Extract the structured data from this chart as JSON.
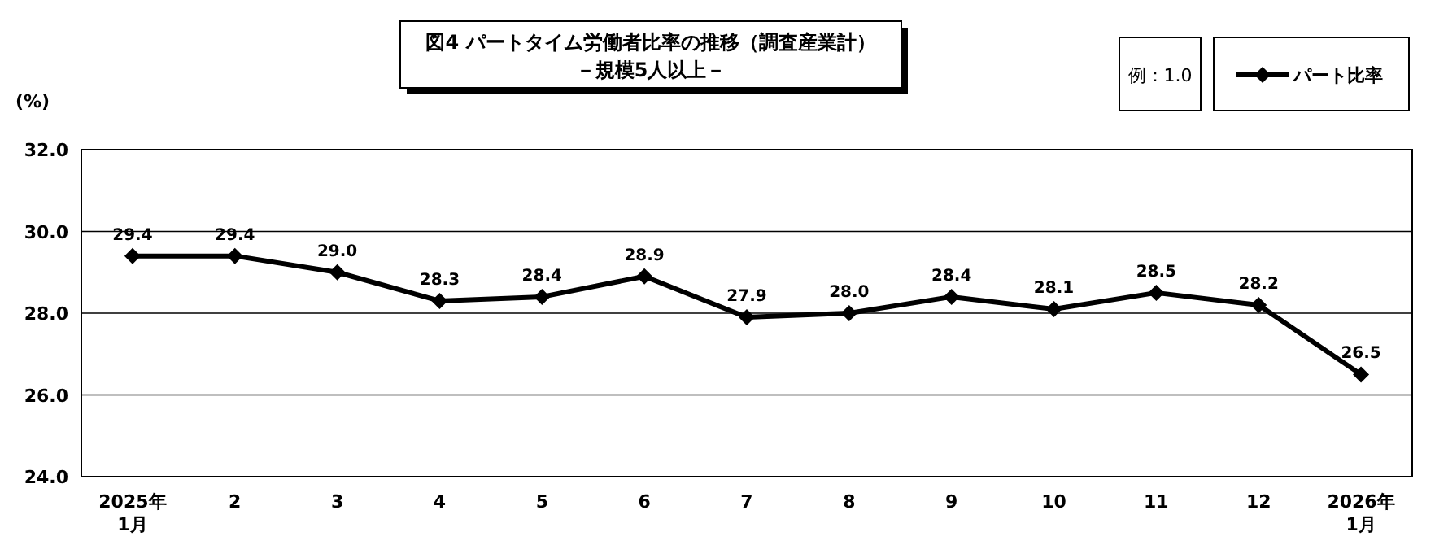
{
  "chart_data": {
    "type": "line",
    "title": "図4  パートタイム労働者比率の推移（調査産業計）",
    "subtitle": "－規模5人以上－",
    "ylabel": "(%)",
    "annotations": [
      "例：1.0"
    ],
    "categories": [
      "2025年\n1月",
      "2",
      "3",
      "4",
      "5",
      "6",
      "7",
      "8",
      "9",
      "10",
      "11",
      "12",
      "2026年\n1月"
    ],
    "series": [
      {
        "name": "パート比率",
        "color": "#000000",
        "values": [
          29.4,
          29.4,
          29.0,
          28.3,
          28.4,
          28.9,
          27.9,
          28.0,
          28.4,
          28.1,
          28.5,
          28.2,
          26.5
        ],
        "value_labels": [
          "29.4",
          "29.4",
          "29.0",
          "28.3",
          "28.4",
          "28.9",
          "27.9",
          "28.0",
          "28.4",
          "28.1",
          "28.5",
          "28.2",
          "26.5"
        ]
      }
    ],
    "ylim": [
      24,
      32
    ],
    "yticks": [
      {
        "value": 24,
        "label": "24.0"
      },
      {
        "value": 26,
        "label": "26.0"
      },
      {
        "value": 28,
        "label": "28.0"
      },
      {
        "value": 30,
        "label": "30.0"
      },
      {
        "value": 32,
        "label": "32.0"
      }
    ],
    "grid": "y",
    "legend": "top right",
    "marker": "diamond",
    "line_style": "solid"
  }
}
